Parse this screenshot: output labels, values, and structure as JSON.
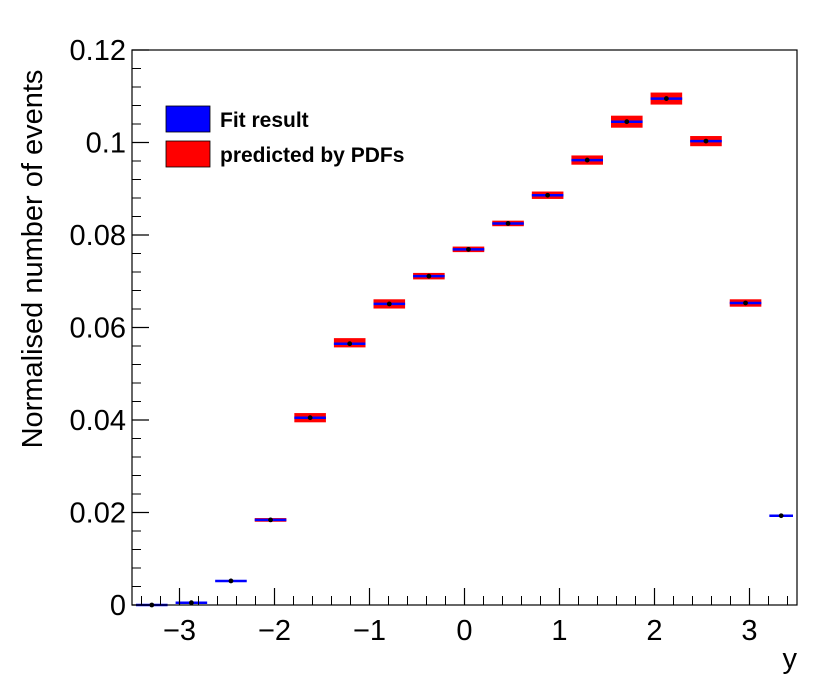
{
  "colors": {
    "fit": "#0000ff",
    "pdf": "#ff0000",
    "points": "#000000",
    "axes": "#000000",
    "background": "#ffffff"
  },
  "chart_data": {
    "type": "bar",
    "xlabel": "y",
    "ylabel": "Normalised number of events",
    "xlim": [
      -3.5,
      3.5
    ],
    "ylim": [
      0,
      0.12
    ],
    "x_ticks": [
      -3,
      -2,
      -1,
      0,
      1,
      2,
      3
    ],
    "x_tick_labels": [
      "−3",
      "−2",
      "−1",
      "0",
      "1",
      "2",
      "3"
    ],
    "y_ticks": [
      0,
      0.02,
      0.04,
      0.06,
      0.08,
      0.1,
      0.12
    ],
    "y_tick_labels": [
      "0",
      "0.02",
      "0.04",
      "0.06",
      "0.08",
      "0.1",
      "0.12"
    ],
    "grid": false,
    "legend_position": "top-left",
    "legend": [
      "Fit result",
      "predicted by PDFs"
    ],
    "bin_edges": [
      -3.5,
      -3.0833,
      -2.6667,
      -2.25,
      -1.8333,
      -1.4167,
      -1.0,
      -0.5833,
      -0.1667,
      0.25,
      0.6667,
      1.0833,
      1.5,
      1.9167,
      2.3333,
      2.75,
      3.1667,
      3.5
    ],
    "series": [
      {
        "name": "Fit result",
        "values": [
          0.0,
          0.0005,
          0.0052,
          0.0184,
          0.0405,
          0.0565,
          0.0651,
          0.0711,
          0.0769,
          0.0825,
          0.0886,
          0.0962,
          0.1045,
          0.1095,
          0.1003,
          0.0653,
          0.0193
        ]
      },
      {
        "name": "predicted by PDFs",
        "values": [
          0.0,
          0.0005,
          0.0052,
          0.0184,
          0.0405,
          0.0567,
          0.0651,
          0.0711,
          0.0769,
          0.0825,
          0.0886,
          0.0962,
          0.1045,
          0.1095,
          0.1003,
          0.0653,
          0.0193
        ],
        "uncertainty": [
          0.0,
          0.0,
          0.0,
          0.0004,
          0.001,
          0.001,
          0.001,
          0.0007,
          0.0006,
          0.0006,
          0.0008,
          0.001,
          0.0013,
          0.0013,
          0.0011,
          0.0008,
          0.0
        ]
      }
    ],
    "data_points": [
      0.0,
      0.0005,
      0.0052,
      0.0184,
      0.0405,
      0.0565,
      0.0651,
      0.0711,
      0.0769,
      0.0825,
      0.0886,
      0.0962,
      0.1045,
      0.1095,
      0.1003,
      0.0653,
      0.0193
    ]
  }
}
